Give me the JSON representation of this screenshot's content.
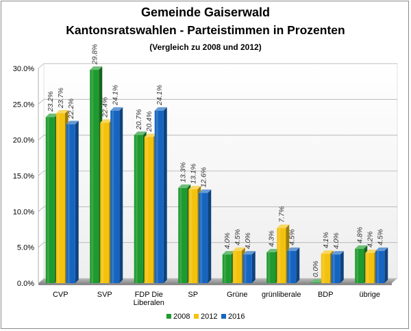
{
  "chart_data": {
    "type": "bar",
    "title": "Gemeinde Gaiserwald",
    "subtitle_line": "Kantonsratswahlen - Parteistimmen in Prozenten",
    "note": "(Vergleich zu 2008 und 2012)",
    "categories": [
      "CVP",
      "SVP",
      "FDP Die Liberalen",
      "SP",
      "Grüne",
      "grünliberale",
      "BDP",
      "übrige"
    ],
    "category_lines": [
      [
        "CVP"
      ],
      [
        "SVP"
      ],
      [
        "FDP Die",
        "Liberalen"
      ],
      [
        "SP"
      ],
      [
        "Grüne"
      ],
      [
        "grünliberale"
      ],
      [
        "BDP"
      ],
      [
        "übrige"
      ]
    ],
    "series": [
      {
        "name": "2008",
        "color": "#1e9a2e",
        "values": [
          23.2,
          29.8,
          20.7,
          13.3,
          4.0,
          4.3,
          0.0,
          4.8
        ],
        "labels": [
          "23.2%",
          "29.8%",
          "20.7%",
          "13.3%",
          "4.0%",
          "4.3%",
          "0.0%",
          "4.8%"
        ]
      },
      {
        "name": "2012",
        "color": "#f4c20d",
        "values": [
          23.7,
          22.4,
          20.4,
          13.1,
          4.5,
          7.7,
          4.1,
          4.2
        ],
        "labels": [
          "23.7%",
          "22.4%",
          "20.4%",
          "13.1%",
          "4.5%",
          "7.7%",
          "4.1%",
          "4.2%"
        ]
      },
      {
        "name": "2016",
        "color": "#1565c0",
        "values": [
          22.2,
          24.1,
          24.1,
          12.6,
          4.0,
          4.5,
          4.0,
          4.5
        ],
        "labels": [
          "22.2%",
          "24.1%",
          "24.1%",
          "12.6%",
          "4.0%",
          "4.5%",
          "4.0%",
          "4.5%"
        ]
      }
    ],
    "yticks": [
      "0.0%",
      "5.0%",
      "10.0%",
      "15.0%",
      "20.0%",
      "25.0%",
      "30.0%"
    ],
    "ylim": [
      0,
      30
    ],
    "grid": true,
    "legend_position": "bottom"
  }
}
